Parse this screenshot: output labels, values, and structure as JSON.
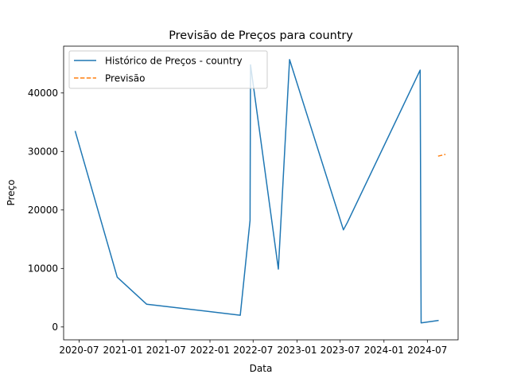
{
  "chart_data": {
    "type": "line",
    "title": "Previsão de Preços para country",
    "xlabel": "Data",
    "ylabel": "Preço",
    "grid": false,
    "legend_position": "top-left",
    "xlim": [
      "2020-04-27",
      "2024-11-07"
    ],
    "ylim": [
      -2200,
      48000
    ],
    "x_ticks": [
      {
        "date": "2020-07-01",
        "label": "2020-07"
      },
      {
        "date": "2021-01-01",
        "label": "2021-01"
      },
      {
        "date": "2021-07-01",
        "label": "2021-07"
      },
      {
        "date": "2022-01-01",
        "label": "2022-01"
      },
      {
        "date": "2022-07-01",
        "label": "2022-07"
      },
      {
        "date": "2023-01-01",
        "label": "2023-01"
      },
      {
        "date": "2023-07-01",
        "label": "2023-07"
      },
      {
        "date": "2024-01-01",
        "label": "2024-01"
      },
      {
        "date": "2024-07-01",
        "label": "2024-07"
      }
    ],
    "y_ticks": [
      {
        "value": 0,
        "label": "0"
      },
      {
        "value": 10000,
        "label": "10000"
      },
      {
        "value": 20000,
        "label": "20000"
      },
      {
        "value": 30000,
        "label": "30000"
      },
      {
        "value": 40000,
        "label": "40000"
      }
    ],
    "series": [
      {
        "name": "Histórico de Preços - country",
        "color": "#1f77b4",
        "style": "solid",
        "points": [
          {
            "x": "2020-06-15",
            "y": 33400
          },
          {
            "x": "2020-12-08",
            "y": 8500
          },
          {
            "x": "2021-04-10",
            "y": 3900
          },
          {
            "x": "2022-05-08",
            "y": 2000
          },
          {
            "x": "2022-06-18",
            "y": 18200
          },
          {
            "x": "2022-06-20",
            "y": 44800
          },
          {
            "x": "2022-10-15",
            "y": 9900
          },
          {
            "x": "2022-12-01",
            "y": 45700
          },
          {
            "x": "2023-07-15",
            "y": 16600
          },
          {
            "x": "2023-08-01",
            "y": 17900
          },
          {
            "x": "2024-06-01",
            "y": 43900
          },
          {
            "x": "2024-06-05",
            "y": 700
          },
          {
            "x": "2024-08-15",
            "y": 1100
          }
        ]
      },
      {
        "name": "Previsão",
        "color": "#ff7f0e",
        "style": "dashed",
        "points": [
          {
            "x": "2024-08-15",
            "y": 29200
          },
          {
            "x": "2024-09-15",
            "y": 29500
          }
        ]
      }
    ]
  }
}
